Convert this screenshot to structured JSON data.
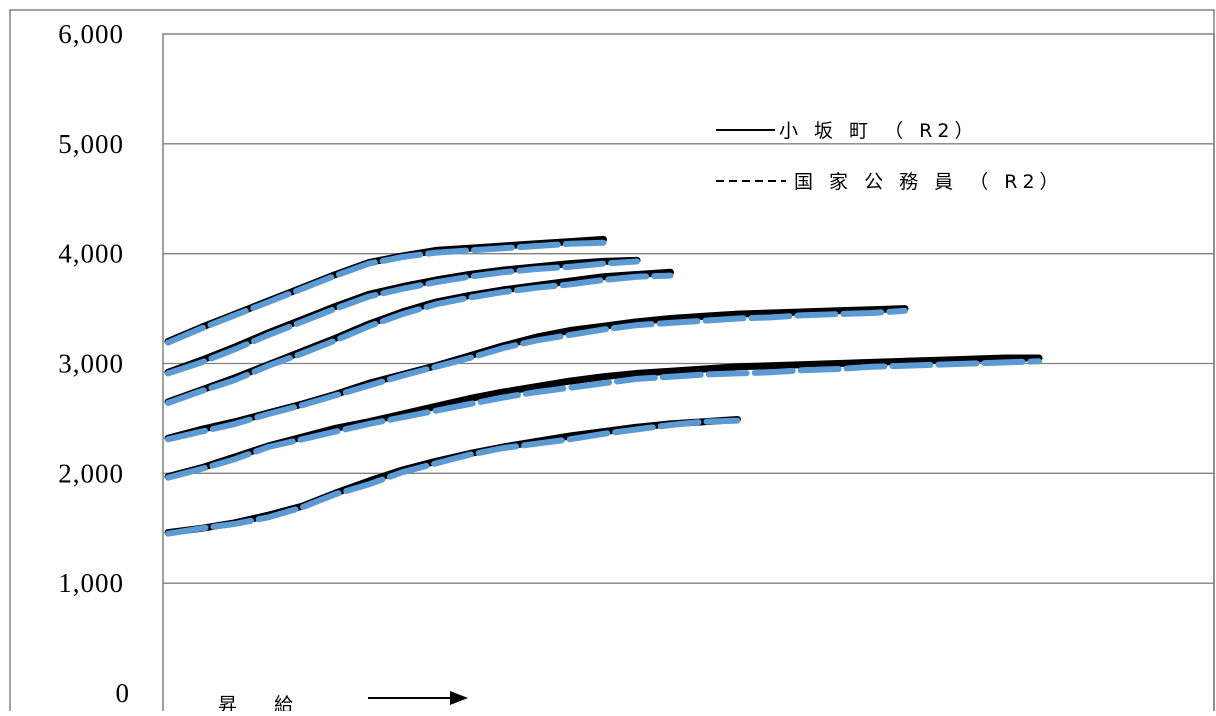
{
  "chart_data": {
    "type": "line",
    "title": "",
    "xlabel": "",
    "ylabel": "",
    "ylim": [
      0,
      6000
    ],
    "yticks": [
      "0",
      "1,000",
      "2,000",
      "3,000",
      "4,000",
      "5,000",
      "6,000"
    ],
    "grid": true,
    "legend_position": "top-right",
    "legend": [
      {
        "label": "小 坂 町 （ R2）",
        "style": "solid"
      },
      {
        "label": "国 家 公 務 員 （ R2）",
        "style": "dashed"
      }
    ],
    "annotation": {
      "text": "昇　 給",
      "arrow": "right"
    },
    "colors": {
      "town": "#000000",
      "national": "#5b9bd5",
      "grid": "#808080"
    },
    "series": [
      {
        "name": "小 坂 町 （ R2）",
        "grade": 1,
        "values": [
          1460,
          1500,
          1550,
          1620,
          1700,
          1820,
          1930,
          2030,
          2110,
          2180,
          2240,
          2290,
          2340,
          2380,
          2420,
          2450,
          2470,
          2490
        ]
      },
      {
        "name": "国 家 公 務 員 （ R2）",
        "grade": 1,
        "values": [
          1450,
          1500,
          1540,
          1600,
          1690,
          1810,
          1900,
          2010,
          2090,
          2170,
          2230,
          2270,
          2310,
          2360,
          2400,
          2440,
          2470,
          2480
        ]
      },
      {
        "name": "小 坂 町 （ R2）",
        "grade": 2,
        "values": [
          1970,
          2050,
          2150,
          2250,
          2330,
          2410,
          2470,
          2540,
          2610,
          2680,
          2740,
          2790,
          2840,
          2880,
          2910,
          2930,
          2950,
          2970,
          2980,
          2990,
          3000,
          3010,
          3020,
          3030,
          3040,
          3050,
          3050
        ]
      },
      {
        "name": "国 家 公 務 員 （ R2）",
        "grade": 2,
        "values": [
          1960,
          2040,
          2130,
          2240,
          2310,
          2380,
          2450,
          2510,
          2570,
          2630,
          2690,
          2740,
          2780,
          2820,
          2860,
          2880,
          2900,
          2910,
          2920,
          2940,
          2950,
          2970,
          2980,
          2990,
          3000,
          3010,
          3020
        ]
      },
      {
        "name": "小 坂 町 （ R2）",
        "grade": 3,
        "values": [
          2320,
          2400,
          2470,
          2550,
          2630,
          2720,
          2820,
          2900,
          2980,
          3070,
          3160,
          3240,
          3300,
          3340,
          3380,
          3410,
          3430,
          3450,
          3460,
          3470,
          3480,
          3490,
          3500
        ]
      },
      {
        "name": "国 家 公 務 員 （ R2）",
        "grade": 3,
        "values": [
          2310,
          2380,
          2450,
          2540,
          2620,
          2710,
          2800,
          2890,
          2970,
          3050,
          3140,
          3210,
          3260,
          3310,
          3350,
          3370,
          3390,
          3410,
          3420,
          3440,
          3450,
          3460,
          3480
        ]
      },
      {
        "name": "小 坂 町 （ R2）",
        "grade": 4,
        "values": [
          2650,
          2760,
          2870,
          2990,
          3110,
          3230,
          3360,
          3470,
          3560,
          3620,
          3670,
          3710,
          3750,
          3790,
          3810,
          3830
        ]
      },
      {
        "name": "国 家 公 務 員 （ R2）",
        "grade": 4,
        "values": [
          2640,
          2750,
          2850,
          2980,
          3090,
          3210,
          3340,
          3450,
          3540,
          3600,
          3650,
          3690,
          3720,
          3760,
          3790,
          3800
        ]
      },
      {
        "name": "小 坂 町 （ R2）",
        "grade": 5,
        "values": [
          2920,
          3030,
          3150,
          3280,
          3400,
          3520,
          3630,
          3700,
          3760,
          3810,
          3850,
          3880,
          3910,
          3930,
          3940
        ]
      },
      {
        "name": "国 家 公 務 員 （ R2）",
        "grade": 5,
        "values": [
          2910,
          3010,
          3130,
          3260,
          3380,
          3500,
          3610,
          3680,
          3740,
          3790,
          3830,
          3860,
          3880,
          3910,
          3930
        ]
      },
      {
        "name": "小 坂 町 （ R2）",
        "grade": 6,
        "values": [
          3200,
          3330,
          3450,
          3570,
          3690,
          3810,
          3920,
          3980,
          4030,
          4050,
          4070,
          4090,
          4110,
          4130
        ]
      },
      {
        "name": "国 家 公 務 員 （ R2）",
        "grade": 6,
        "values": [
          3190,
          3320,
          3440,
          3560,
          3680,
          3800,
          3910,
          3970,
          4010,
          4030,
          4050,
          4070,
          4090,
          4100
        ]
      }
    ]
  }
}
